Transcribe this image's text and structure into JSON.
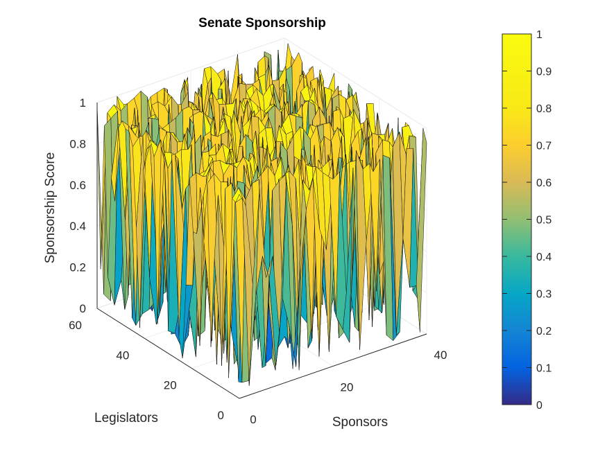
{
  "chart_data": {
    "type": "surface",
    "title": "Senate Sponsorship",
    "xlabel": "Sponsors",
    "ylabel": "Legislators",
    "zlabel": "Sponsorship Score",
    "xlim": [
      0,
      40
    ],
    "ylim": [
      0,
      60
    ],
    "zlim": [
      0,
      1
    ],
    "x_ticks": [
      "0",
      "20",
      "40"
    ],
    "y_ticks": [
      "0",
      "20",
      "40",
      "60"
    ],
    "z_ticks": [
      "0",
      "0.2",
      "0.4",
      "0.6",
      "0.8",
      "1"
    ],
    "grid": true,
    "view": "3-D isometric (azimuth ≈ -37.5°, elevation ≈ 30°)",
    "surface_grid": {
      "sponsors": 40,
      "legislators": 60
    },
    "data_note_seed": 7,
    "colormap": "parula",
    "colorbar": {
      "ticks": [
        "0",
        "0.1",
        "0.2",
        "0.3",
        "0.4",
        "0.5",
        "0.6",
        "0.7",
        "0.8",
        "0.9",
        "1"
      ],
      "placement": "right"
    }
  }
}
